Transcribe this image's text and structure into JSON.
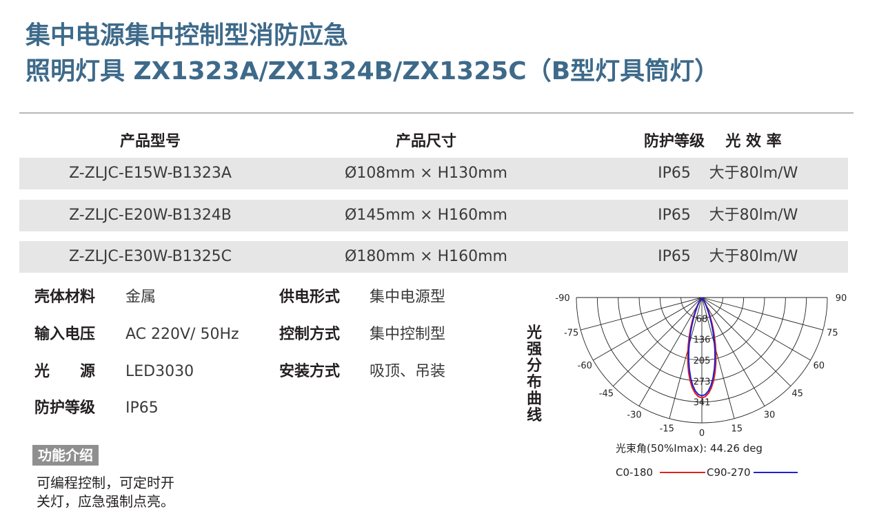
{
  "title": {
    "line1": "集中电源集中控制型消防应急",
    "line2": "照明灯具 ZX1323A/ZX1324B/ZX1325C（B型灯具筒灯）"
  },
  "table": {
    "headers": [
      "产品型号",
      "产品尺寸",
      "防护等级",
      "光 效 率"
    ],
    "rows": [
      [
        "Z-ZLJC-E15W-B1323A",
        "Ø108mm × H130mm",
        "IP65",
        "大于80lm/W"
      ],
      [
        "Z-ZLJC-E20W-B1324B",
        "Ø145mm × H160mm",
        "IP65",
        "大于80lm/W"
      ],
      [
        "Z-ZLJC-E30W-B1325C",
        "Ø180mm × H160mm",
        "IP65",
        "大于80lm/W"
      ]
    ]
  },
  "specs": {
    "left": [
      {
        "label": "壳体材料",
        "value": "金属"
      },
      {
        "label": "输入电压",
        "value": "AC 220V/ 50Hz"
      },
      {
        "label": "光　　源",
        "value": "LED3030"
      },
      {
        "label": "防护等级",
        "value": "IP65"
      }
    ],
    "right": [
      {
        "label": "供电形式",
        "value": "集中电源型"
      },
      {
        "label": "控制方式",
        "value": "集中控制型"
      },
      {
        "label": "安装方式",
        "value": "吸顶、吊装"
      }
    ]
  },
  "function": {
    "badge": "功能介绍",
    "lines": [
      "可编程控制，可定时开",
      "关灯，应急强制点亮。"
    ]
  },
  "curve_label": [
    "光",
    "强",
    "分",
    "布",
    "曲",
    "线"
  ],
  "chart_data": {
    "type": "polar",
    "angle_ticks": [
      "-90",
      "-75",
      "-60",
      "-45",
      "-30",
      "-15",
      "0",
      "15",
      "30",
      "45",
      "60",
      "75",
      "90"
    ],
    "radial_ticks": [
      "68",
      "136",
      "205",
      "273",
      "341"
    ],
    "beam_angle": "光束角(50%Imax): 44.26 deg",
    "series": [
      {
        "name": "C0-180",
        "color": "#e02020"
      },
      {
        "name": "C90-270",
        "color": "#2020d0"
      }
    ]
  }
}
